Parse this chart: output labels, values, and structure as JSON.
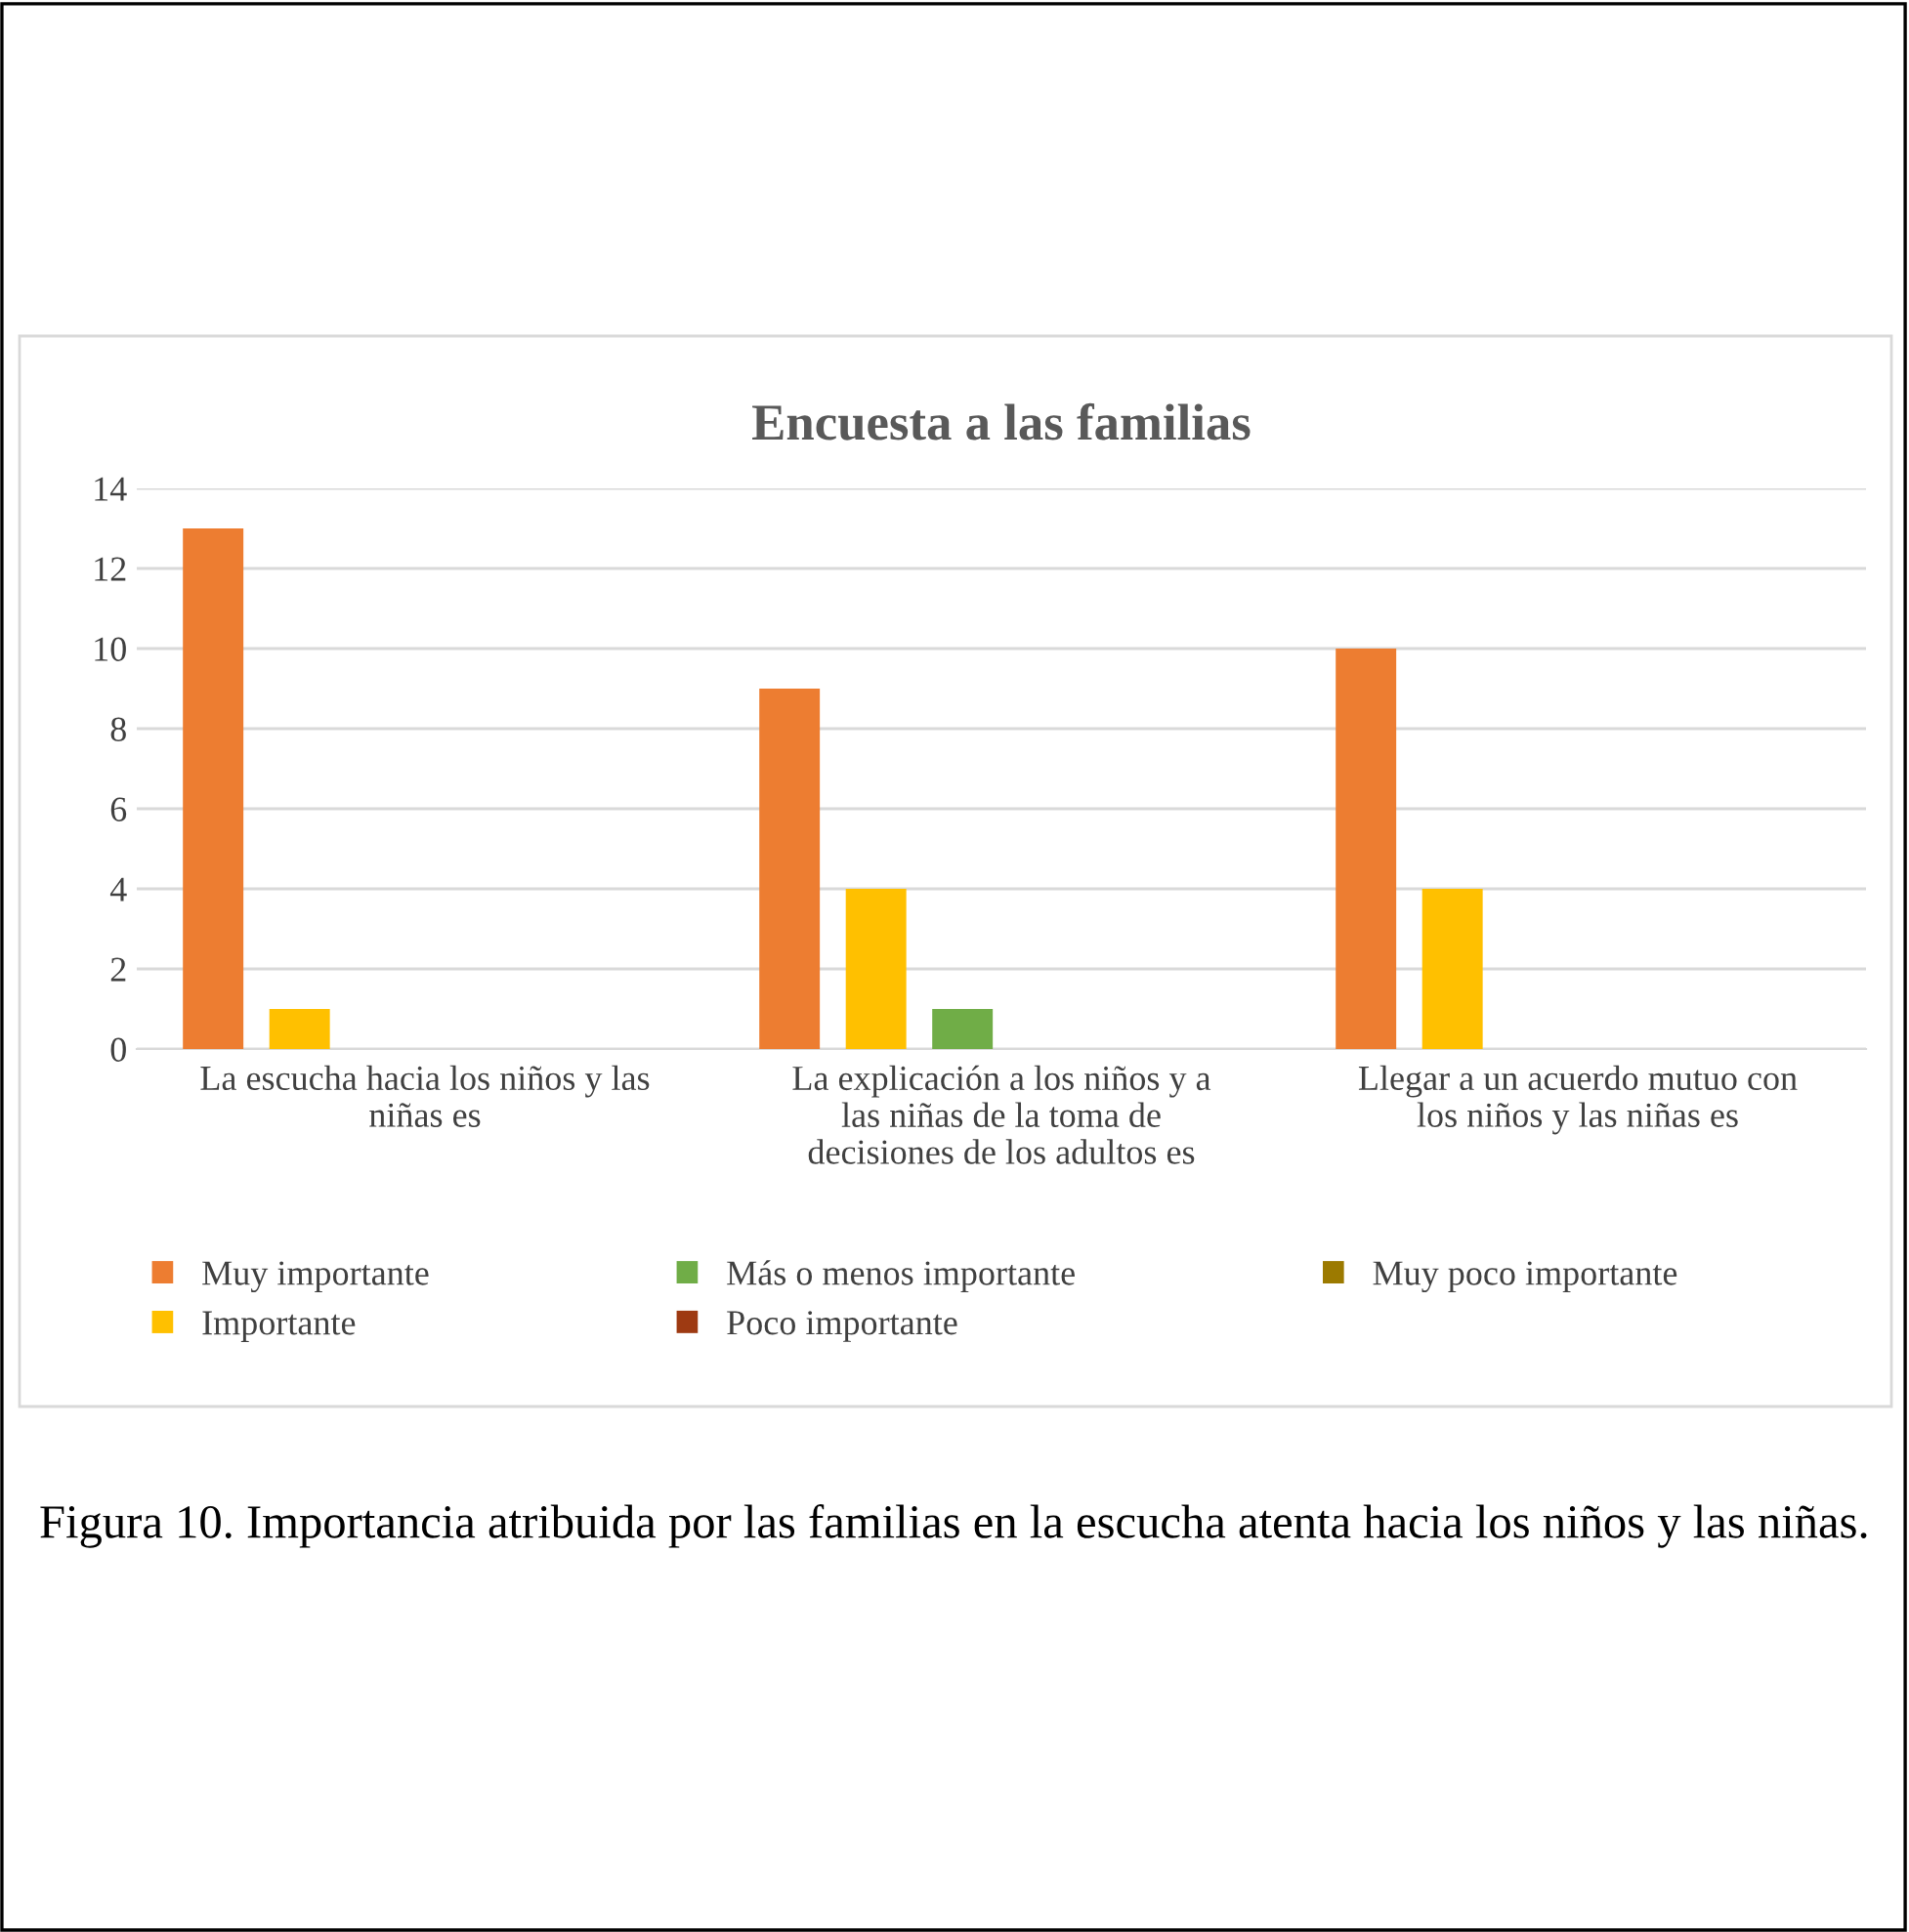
{
  "chart_data": {
    "type": "bar",
    "title": "Encuesta a las familias",
    "categories": [
      "La escucha hacia los niños y las niñas es",
      "La explicación a los niños y a las niñas de la toma de decisiones de los adultos es",
      "Llegar a un acuerdo mutuo con los niños y las niñas es"
    ],
    "series": [
      {
        "name": "Muy importante",
        "color": "#ed7d31",
        "values": [
          13,
          9,
          10
        ]
      },
      {
        "name": "Importante",
        "color": "#ffc000",
        "values": [
          1,
          4,
          4
        ]
      },
      {
        "name": "Más o menos importante",
        "color": "#70ad47",
        "values": [
          0,
          1,
          0
        ]
      },
      {
        "name": "Poco importante",
        "color": "#9e3a12",
        "values": [
          0,
          0,
          0
        ]
      },
      {
        "name": "Muy poco importante",
        "color": "#9c7a00",
        "values": [
          0,
          0,
          0
        ]
      }
    ],
    "ylim": [
      0,
      14
    ],
    "yticks": [
      0,
      2,
      4,
      6,
      8,
      10,
      12,
      14
    ],
    "grid": "y",
    "legend": "bottom",
    "annotations": [
      "Figura 10. Importancia atribuida por las familias en la escucha atenta hacia los niños y las niñas."
    ]
  }
}
